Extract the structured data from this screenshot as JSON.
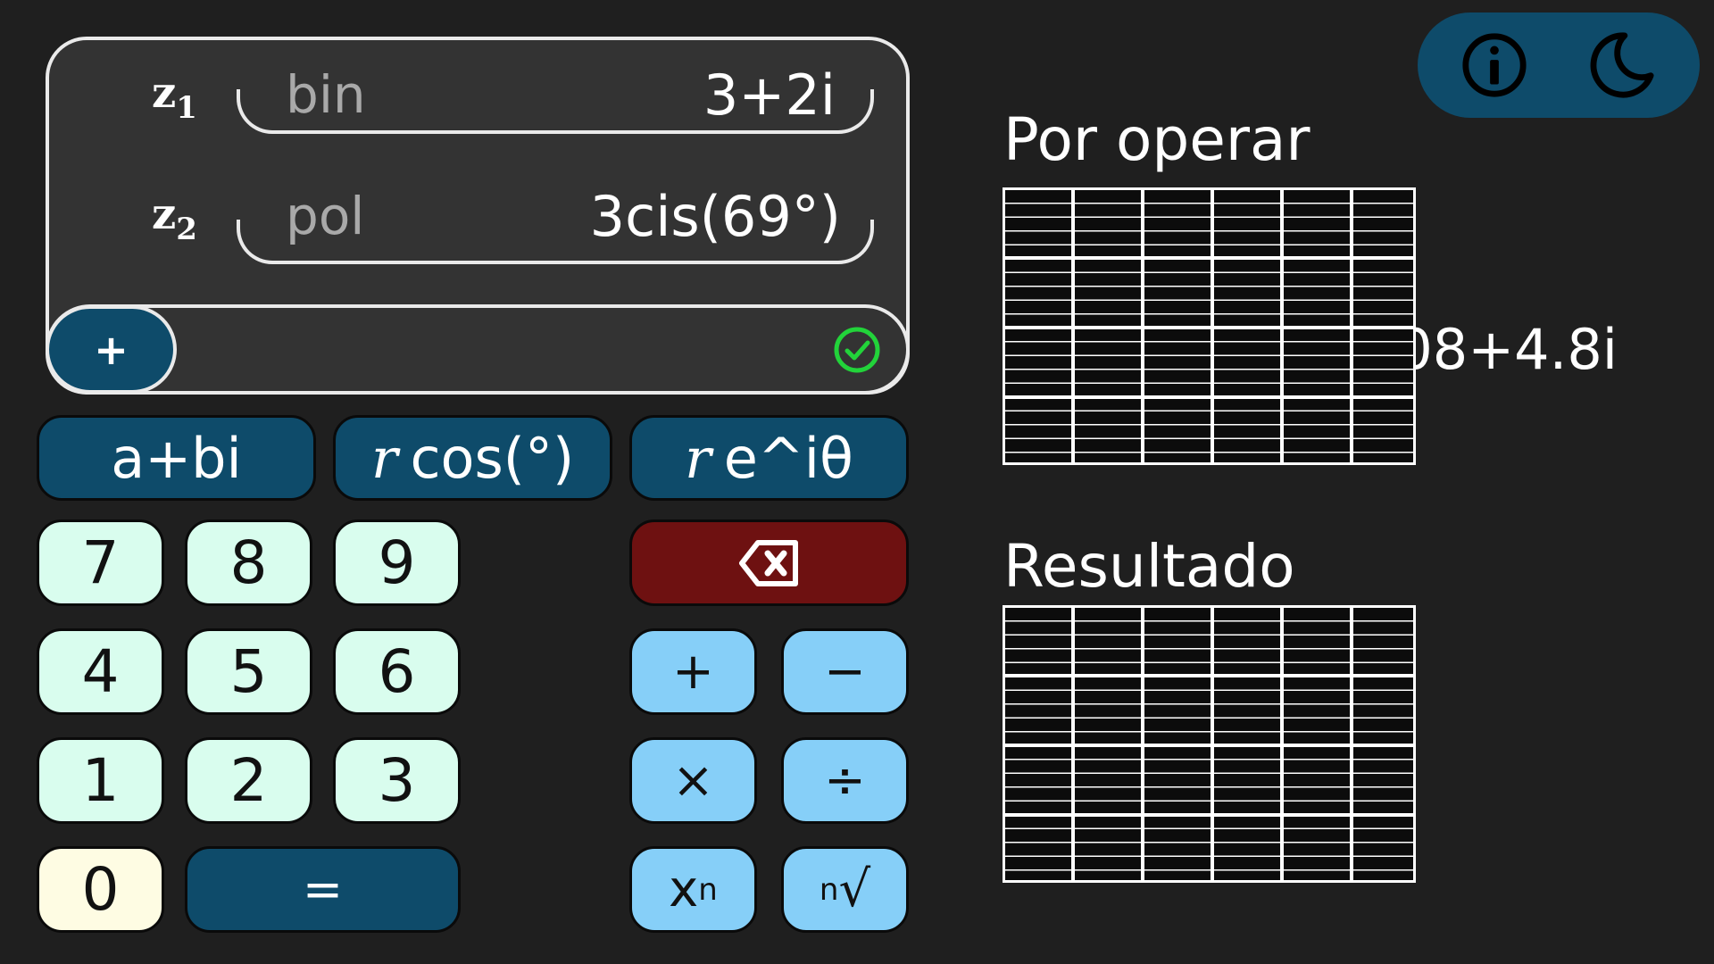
{
  "toolbar": {
    "info_icon": "info-circle-icon",
    "theme_icon": "moon-icon"
  },
  "display": {
    "z1": {
      "label": "z",
      "sub": "1",
      "mode": "bin",
      "value": "3+2i"
    },
    "z2": {
      "label": "z",
      "sub": "2",
      "mode": "pol",
      "value": "3cis(69°)"
    },
    "operator": "+",
    "result": "4.08+4.8i",
    "status_icon": "check-circle-icon"
  },
  "forms": {
    "binomial": "a+bi",
    "polar_prefix": "r",
    "polar_rest": "cos(°)",
    "exp_prefix": "r",
    "exp_rest": "e^iθ"
  },
  "keypad": {
    "k7": "7",
    "k8": "8",
    "k9": "9",
    "k4": "4",
    "k5": "5",
    "k6": "6",
    "k1": "1",
    "k2": "2",
    "k3": "3",
    "k0": "0",
    "equals": "=",
    "plus": "+",
    "minus": "−",
    "times": "×",
    "divide": "÷",
    "power_base": "x",
    "power_exp": "n",
    "root_index": "n",
    "root_sign": "√",
    "delete_icon": "backspace-icon"
  },
  "panels": {
    "to_operate_title": "Por operar",
    "result_title": "Resultado"
  },
  "colors": {
    "accent_dark": "#0e4b6a",
    "operator_key": "#86cff8",
    "number_key": "#d9fdee",
    "zero_key": "#fefce3",
    "delete_key": "#6e1111",
    "ok_green": "#22d33a"
  }
}
